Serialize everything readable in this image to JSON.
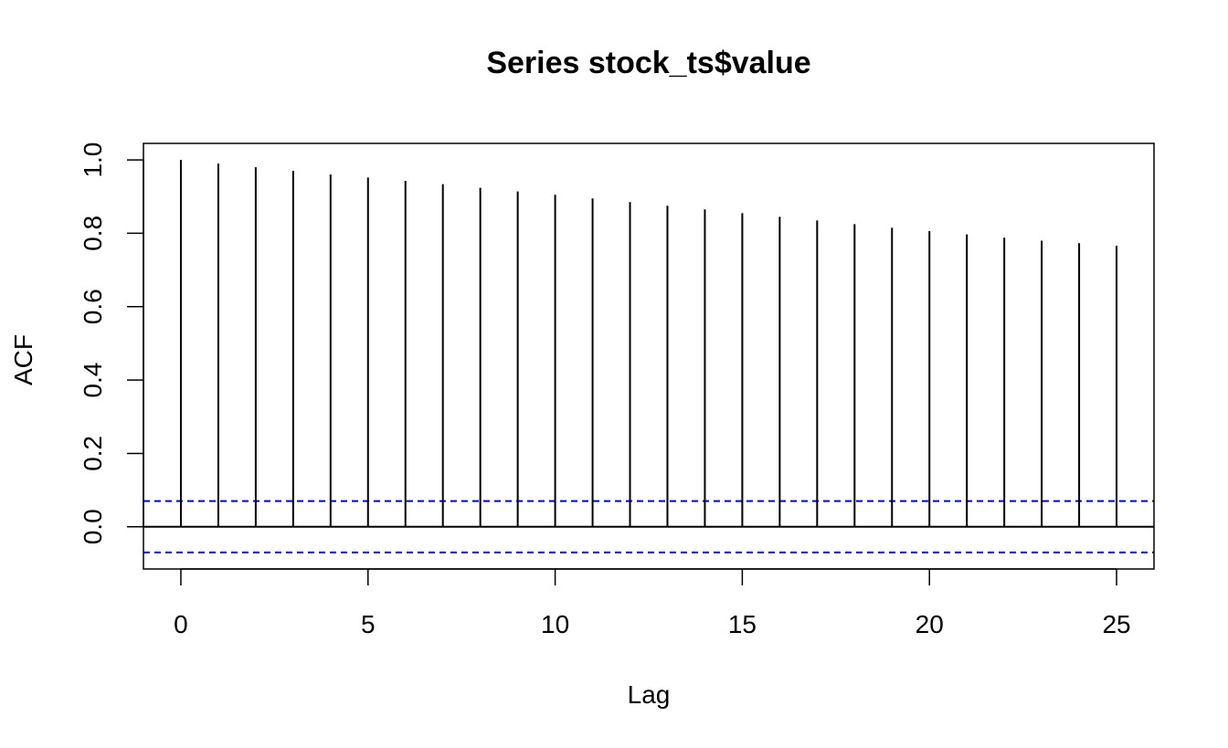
{
  "chart_data": {
    "type": "bar",
    "title": "Series  stock_ts$value",
    "xlabel": "Lag",
    "ylabel": "ACF",
    "x": [
      0,
      1,
      2,
      3,
      4,
      5,
      6,
      7,
      8,
      9,
      10,
      11,
      12,
      13,
      14,
      15,
      16,
      17,
      18,
      19,
      20,
      21,
      22,
      23,
      24,
      25
    ],
    "values": [
      1.0,
      0.99,
      0.98,
      0.97,
      0.96,
      0.952,
      0.943,
      0.934,
      0.924,
      0.914,
      0.905,
      0.895,
      0.885,
      0.875,
      0.865,
      0.855,
      0.845,
      0.835,
      0.825,
      0.815,
      0.806,
      0.797,
      0.788,
      0.78,
      0.773,
      0.766
    ],
    "confidence_bound": 0.07,
    "xticks": [
      0,
      5,
      10,
      15,
      20,
      25
    ],
    "yticks": [
      0.0,
      0.2,
      0.4,
      0.6,
      0.8,
      1.0
    ],
    "xlim": [
      -1,
      26
    ],
    "ylim": [
      -0.115,
      1.045
    ],
    "colors": {
      "spikes": "#000000",
      "zero_line": "#000000",
      "confidence_lines": "#0000ff"
    }
  }
}
